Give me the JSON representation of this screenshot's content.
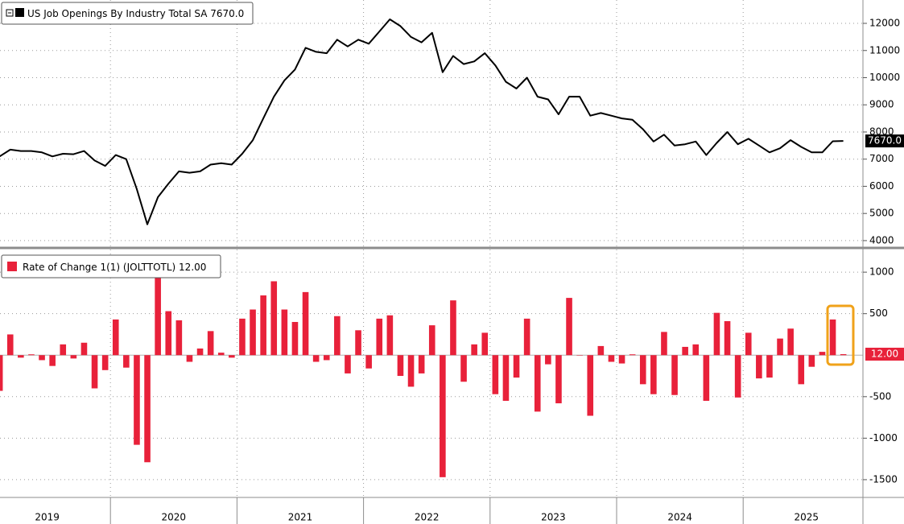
{
  "chart_data": [
    {
      "type": "line",
      "title": "US Job Openings By Industry Total SA",
      "last_value_label": "7670.0",
      "color": "#000000",
      "values": [
        7100,
        7350,
        7300,
        7300,
        7250,
        7100,
        7200,
        7180,
        7300,
        6950,
        6750,
        7150,
        7000,
        5900,
        4600,
        5600,
        6100,
        6550,
        6500,
        6550,
        6800,
        6850,
        6800,
        7200,
        7700,
        8500,
        9300,
        9900,
        10300,
        11100,
        10950,
        10900,
        11400,
        11150,
        11400,
        11250,
        11700,
        12150,
        11900,
        11500,
        11300,
        11650,
        10200,
        10800,
        10500,
        10600,
        10900,
        10450,
        9850,
        9600,
        10000,
        9300,
        9200,
        8650,
        9300,
        9300,
        8600,
        8700,
        8600,
        8500,
        8450,
        8100,
        7650,
        7900,
        7500,
        7550,
        7650,
        7150,
        7600,
        8000,
        7550,
        7750,
        7500,
        7250,
        7400,
        7700,
        7450,
        7250,
        7250,
        7658,
        7670
      ],
      "ylim": [
        3820,
        12860
      ],
      "yticks": [
        4000,
        5000,
        6000,
        7000,
        8000,
        9000,
        10000,
        11000,
        12000
      ],
      "grid": true
    },
    {
      "type": "bar",
      "title": "Rate of Change 1(1) (JOLTTOTL)",
      "last_value_label": "12.00",
      "color": "#e8213a",
      "categories": [
        null,
        null,
        null,
        null,
        null,
        null,
        null,
        null,
        null,
        null,
        null,
        null,
        null,
        null,
        null,
        null,
        null,
        null,
        null,
        null,
        null,
        null,
        null,
        null,
        null,
        null,
        null,
        null,
        null,
        null,
        null,
        null,
        null,
        null,
        null,
        null,
        null,
        null,
        null,
        null,
        null,
        null,
        null,
        null,
        null,
        null,
        null,
        null,
        null,
        null,
        null,
        null,
        null,
        null,
        null,
        null,
        null,
        null,
        null,
        null,
        null,
        null,
        null,
        null,
        null,
        null,
        null,
        null,
        null,
        null,
        null,
        null,
        null,
        null,
        null,
        null,
        null,
        null,
        null,
        null,
        null
      ],
      "values": [
        -430,
        250,
        -30,
        10,
        -60,
        -130,
        130,
        -40,
        150,
        -400,
        -180,
        430,
        -150,
        -1080,
        -1290,
        930,
        530,
        420,
        -80,
        80,
        290,
        30,
        -30,
        440,
        550,
        720,
        890,
        550,
        400,
        760,
        -80,
        -60,
        470,
        -220,
        300,
        -160,
        440,
        480,
        -250,
        -380,
        -220,
        360,
        -1470,
        660,
        -320,
        130,
        270,
        -470,
        -550,
        -270,
        440,
        -680,
        -110,
        -580,
        690,
        0,
        -730,
        110,
        -80,
        -100,
        10,
        -350,
        -470,
        280,
        -480,
        100,
        130,
        -550,
        510,
        410,
        -510,
        270,
        -280,
        -270,
        200,
        320,
        -350,
        -140,
        40,
        430,
        12
      ],
      "ylim": [
        -1714,
        1263
      ],
      "yticks": [
        1000,
        500,
        -500,
        -1000,
        -1500
      ],
      "grid": true,
      "year_labels": [
        "2019",
        "2020",
        "2021",
        "2022",
        "2023",
        "2024",
        "2025"
      ]
    }
  ]
}
